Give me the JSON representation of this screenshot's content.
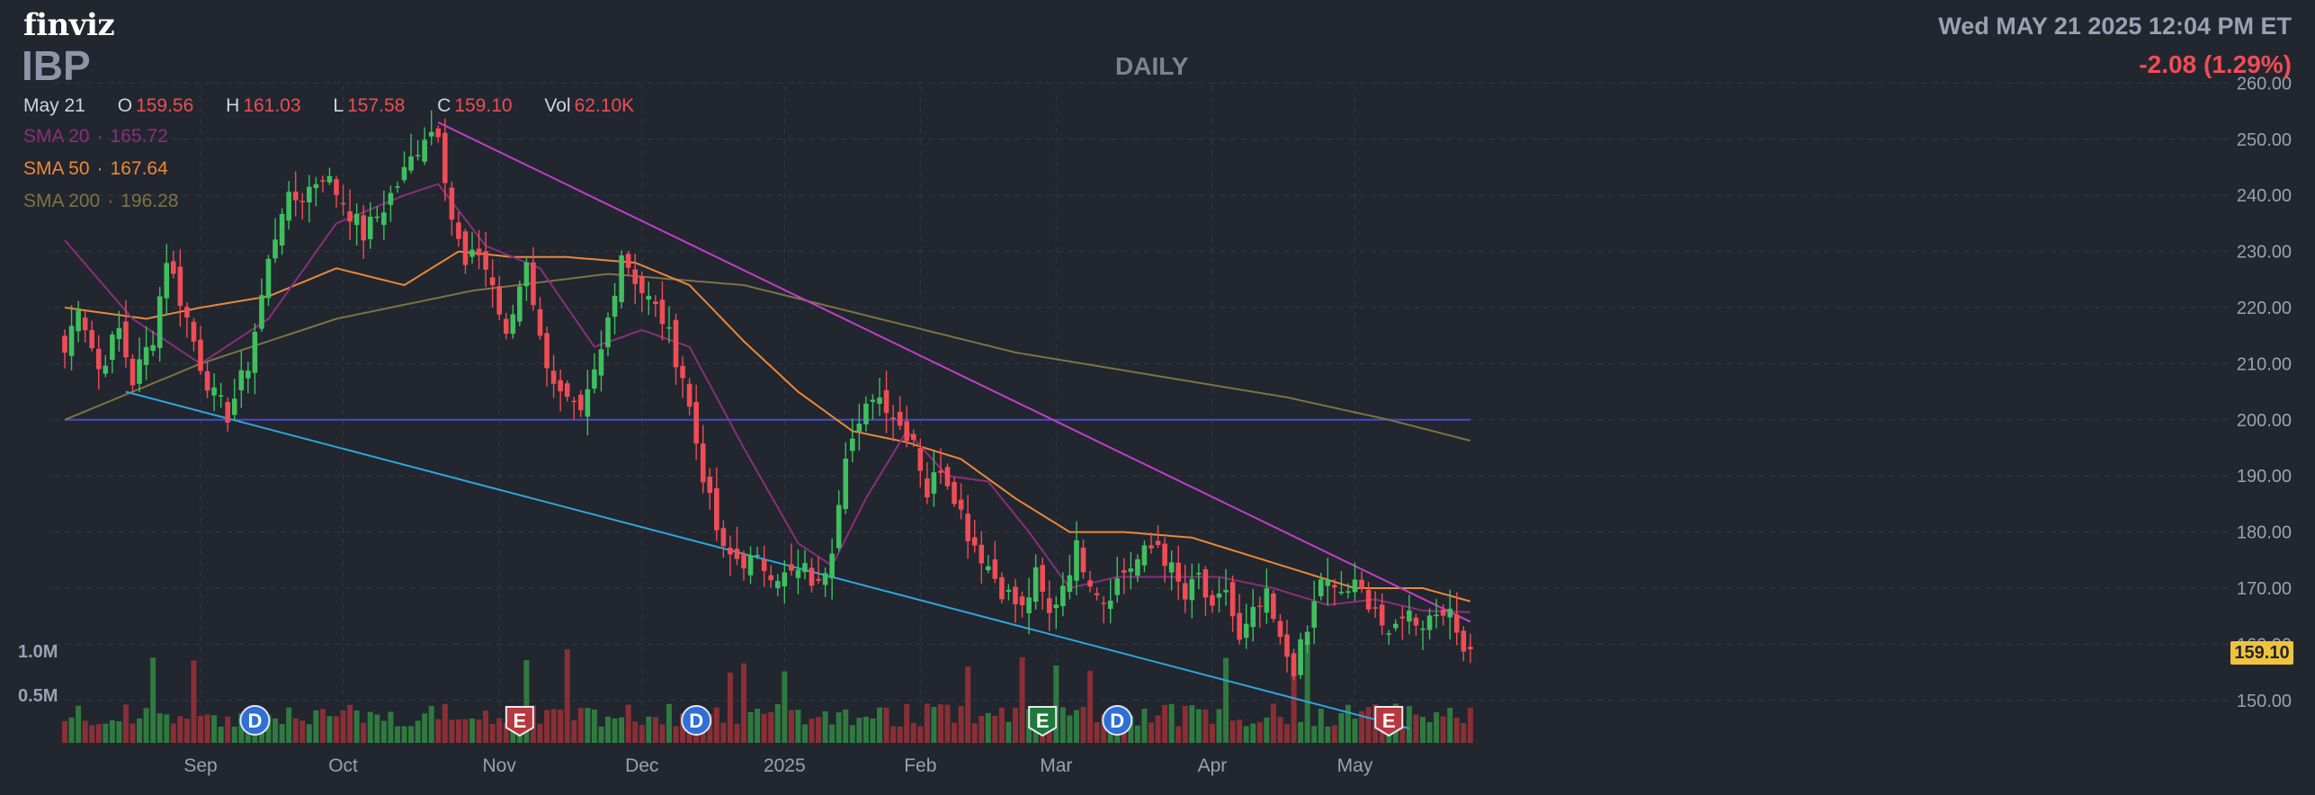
{
  "header": {
    "logo": "finviz",
    "ticker": "IBP",
    "timeframe": "DAILY",
    "datetime": "Wed MAY 21 2025 12:04 PM ET",
    "change": "-2.08 (1.29%)"
  },
  "ohlc": {
    "date": "May 21",
    "open_label": "O",
    "open": "159.56",
    "high_label": "H",
    "high": "161.03",
    "low_label": "L",
    "low": "157.58",
    "close_label": "C",
    "close": "159.10",
    "vol_label": "Vol",
    "vol": "62.10K"
  },
  "sma": [
    {
      "label": "SMA 20",
      "value": "165.72",
      "color": "#8a2f7a"
    },
    {
      "label": "SMA 50",
      "value": "167.64",
      "color": "#e8893a"
    },
    {
      "label": "SMA 200",
      "value": "196.28",
      "color": "#7d7442"
    }
  ],
  "last_price": "159.10",
  "colors": {
    "up": "#3fbf5f",
    "down": "#ef4d56",
    "up_vol": "#2f7a3f",
    "down_vol": "#8a2f35",
    "background": "#22262f"
  },
  "chart_data": {
    "type": "candlestick",
    "y_axis": {
      "min": 145,
      "max": 260,
      "ticks": [
        150,
        160,
        170,
        180,
        190,
        200,
        210,
        220,
        230,
        240,
        250,
        260
      ],
      "tick_labels": [
        "150.00",
        "160.00",
        "170.00",
        "180.00",
        "190.00",
        "200.00",
        "210.00",
        "220.00",
        "230.00",
        "240.00",
        "250.00",
        "260.00"
      ],
      "position": "right"
    },
    "x_axis": {
      "labels": [
        "Sep",
        "Oct",
        "Nov",
        "Dec",
        "2025",
        "Feb",
        "Mar",
        "Apr",
        "May"
      ],
      "label_sessions": [
        20,
        41,
        64,
        85,
        106,
        126,
        146,
        169,
        190
      ]
    },
    "volume_axis": {
      "labels": [
        "1.0M",
        "0.5M"
      ],
      "values": [
        1000000,
        500000
      ]
    },
    "sessions": 208,
    "keypoints": [
      {
        "i": 0,
        "p": 212
      },
      {
        "i": 2,
        "p": 221
      },
      {
        "i": 5,
        "p": 209
      },
      {
        "i": 8,
        "p": 216
      },
      {
        "i": 10,
        "p": 207
      },
      {
        "i": 13,
        "p": 215
      },
      {
        "i": 15,
        "p": 229
      },
      {
        "i": 18,
        "p": 218
      },
      {
        "i": 20,
        "p": 210
      },
      {
        "i": 22,
        "p": 204
      },
      {
        "i": 24,
        "p": 201
      },
      {
        "i": 27,
        "p": 210
      },
      {
        "i": 30,
        "p": 228
      },
      {
        "i": 32,
        "p": 238
      },
      {
        "i": 35,
        "p": 240
      },
      {
        "i": 38,
        "p": 244
      },
      {
        "i": 41,
        "p": 239
      },
      {
        "i": 44,
        "p": 233
      },
      {
        "i": 47,
        "p": 238
      },
      {
        "i": 50,
        "p": 244
      },
      {
        "i": 53,
        "p": 251
      },
      {
        "i": 55,
        "p": 252
      },
      {
        "i": 57,
        "p": 236
      },
      {
        "i": 59,
        "p": 227
      },
      {
        "i": 61,
        "p": 230
      },
      {
        "i": 63,
        "p": 224
      },
      {
        "i": 65,
        "p": 214
      },
      {
        "i": 68,
        "p": 229
      },
      {
        "i": 70,
        "p": 214
      },
      {
        "i": 73,
        "p": 204
      },
      {
        "i": 76,
        "p": 200
      },
      {
        "i": 79,
        "p": 212
      },
      {
        "i": 82,
        "p": 230
      },
      {
        "i": 85,
        "p": 223
      },
      {
        "i": 88,
        "p": 218
      },
      {
        "i": 91,
        "p": 208
      },
      {
        "i": 93,
        "p": 196
      },
      {
        "i": 95,
        "p": 185
      },
      {
        "i": 97,
        "p": 176
      },
      {
        "i": 100,
        "p": 175
      },
      {
        "i": 103,
        "p": 174
      },
      {
        "i": 106,
        "p": 172
      },
      {
        "i": 109,
        "p": 173
      },
      {
        "i": 111,
        "p": 170
      },
      {
        "i": 113,
        "p": 178
      },
      {
        "i": 115,
        "p": 195
      },
      {
        "i": 117,
        "p": 198
      },
      {
        "i": 119,
        "p": 205
      },
      {
        "i": 121,
        "p": 203
      },
      {
        "i": 123,
        "p": 199
      },
      {
        "i": 125,
        "p": 197
      },
      {
        "i": 127,
        "p": 187
      },
      {
        "i": 129,
        "p": 192
      },
      {
        "i": 131,
        "p": 187
      },
      {
        "i": 133,
        "p": 180
      },
      {
        "i": 135,
        "p": 176
      },
      {
        "i": 138,
        "p": 170
      },
      {
        "i": 141,
        "p": 166
      },
      {
        "i": 143,
        "p": 172
      },
      {
        "i": 145,
        "p": 165
      },
      {
        "i": 147,
        "p": 171
      },
      {
        "i": 149,
        "p": 177
      },
      {
        "i": 151,
        "p": 172
      },
      {
        "i": 153,
        "p": 168
      },
      {
        "i": 156,
        "p": 173
      },
      {
        "i": 159,
        "p": 176
      },
      {
        "i": 161,
        "p": 178
      },
      {
        "i": 163,
        "p": 173
      },
      {
        "i": 165,
        "p": 168
      },
      {
        "i": 167,
        "p": 172
      },
      {
        "i": 169,
        "p": 165
      },
      {
        "i": 171,
        "p": 170
      },
      {
        "i": 173,
        "p": 160
      },
      {
        "i": 175,
        "p": 165
      },
      {
        "i": 177,
        "p": 168
      },
      {
        "i": 179,
        "p": 160
      },
      {
        "i": 181,
        "p": 156
      },
      {
        "i": 183,
        "p": 162
      },
      {
        "i": 185,
        "p": 172
      },
      {
        "i": 187,
        "p": 169
      },
      {
        "i": 190,
        "p": 170
      },
      {
        "i": 193,
        "p": 167
      },
      {
        "i": 195,
        "p": 160
      },
      {
        "i": 197,
        "p": 166
      },
      {
        "i": 200,
        "p": 164
      },
      {
        "i": 203,
        "p": 167
      },
      {
        "i": 205,
        "p": 162
      },
      {
        "i": 207,
        "p": 159.1
      }
    ],
    "sma20_keypoints": [
      {
        "i": 0,
        "p": 232
      },
      {
        "i": 10,
        "p": 218
      },
      {
        "i": 20,
        "p": 210
      },
      {
        "i": 30,
        "p": 218
      },
      {
        "i": 40,
        "p": 235
      },
      {
        "i": 50,
        "p": 240
      },
      {
        "i": 55,
        "p": 242
      },
      {
        "i": 62,
        "p": 231
      },
      {
        "i": 70,
        "p": 227
      },
      {
        "i": 78,
        "p": 213
      },
      {
        "i": 85,
        "p": 216
      },
      {
        "i": 92,
        "p": 213
      },
      {
        "i": 100,
        "p": 195
      },
      {
        "i": 108,
        "p": 178
      },
      {
        "i": 113,
        "p": 174
      },
      {
        "i": 118,
        "p": 186
      },
      {
        "i": 124,
        "p": 198
      },
      {
        "i": 130,
        "p": 190
      },
      {
        "i": 136,
        "p": 189
      },
      {
        "i": 142,
        "p": 180
      },
      {
        "i": 148,
        "p": 170
      },
      {
        "i": 155,
        "p": 172
      },
      {
        "i": 162,
        "p": 172
      },
      {
        "i": 170,
        "p": 172
      },
      {
        "i": 178,
        "p": 170
      },
      {
        "i": 186,
        "p": 167
      },
      {
        "i": 193,
        "p": 168
      },
      {
        "i": 200,
        "p": 166
      },
      {
        "i": 207,
        "p": 165.72
      }
    ],
    "sma50_keypoints": [
      {
        "i": 0,
        "p": 220
      },
      {
        "i": 12,
        "p": 218
      },
      {
        "i": 20,
        "p": 220
      },
      {
        "i": 30,
        "p": 222
      },
      {
        "i": 40,
        "p": 227
      },
      {
        "i": 50,
        "p": 224
      },
      {
        "i": 58,
        "p": 230
      },
      {
        "i": 66,
        "p": 229
      },
      {
        "i": 74,
        "p": 229
      },
      {
        "i": 84,
        "p": 228
      },
      {
        "i": 92,
        "p": 224
      },
      {
        "i": 100,
        "p": 214
      },
      {
        "i": 108,
        "p": 205
      },
      {
        "i": 116,
        "p": 198
      },
      {
        "i": 124,
        "p": 196
      },
      {
        "i": 132,
        "p": 193
      },
      {
        "i": 140,
        "p": 186
      },
      {
        "i": 148,
        "p": 180
      },
      {
        "i": 156,
        "p": 180
      },
      {
        "i": 166,
        "p": 179
      },
      {
        "i": 174,
        "p": 176
      },
      {
        "i": 182,
        "p": 173
      },
      {
        "i": 190,
        "p": 170
      },
      {
        "i": 200,
        "p": 170
      },
      {
        "i": 207,
        "p": 167.64
      }
    ],
    "sma200_keypoints": [
      {
        "i": 0,
        "p": 200
      },
      {
        "i": 20,
        "p": 210
      },
      {
        "i": 40,
        "p": 218
      },
      {
        "i": 60,
        "p": 223
      },
      {
        "i": 80,
        "p": 226
      },
      {
        "i": 100,
        "p": 224
      },
      {
        "i": 120,
        "p": 218
      },
      {
        "i": 140,
        "p": 212
      },
      {
        "i": 160,
        "p": 208
      },
      {
        "i": 180,
        "p": 204
      },
      {
        "i": 195,
        "p": 200
      },
      {
        "i": 207,
        "p": 196.28
      }
    ],
    "trendlines": [
      {
        "name": "resistance",
        "color": "#c23ec9",
        "from": {
          "i": 55,
          "p": 253
        },
        "to": {
          "i": 207,
          "p": 164
        }
      },
      {
        "name": "support",
        "color": "#2ea6dc",
        "from": {
          "i": 9,
          "p": 205
        },
        "to": {
          "i": 198,
          "p": 145
        }
      },
      {
        "name": "horizontal",
        "color": "#4a4ac8",
        "from": {
          "i": 0,
          "p": 200
        },
        "to": {
          "i": 207,
          "p": 200
        }
      }
    ],
    "event_markers": [
      {
        "label": "D",
        "i": 28,
        "type": "dividend"
      },
      {
        "label": "E",
        "i": 67,
        "type": "earnings-down"
      },
      {
        "label": "D",
        "i": 93,
        "type": "dividend"
      },
      {
        "label": "E",
        "i": 144,
        "type": "earnings-up"
      },
      {
        "label": "D",
        "i": 155,
        "type": "dividend"
      },
      {
        "label": "E",
        "i": 195,
        "type": "earnings-down"
      }
    ]
  }
}
